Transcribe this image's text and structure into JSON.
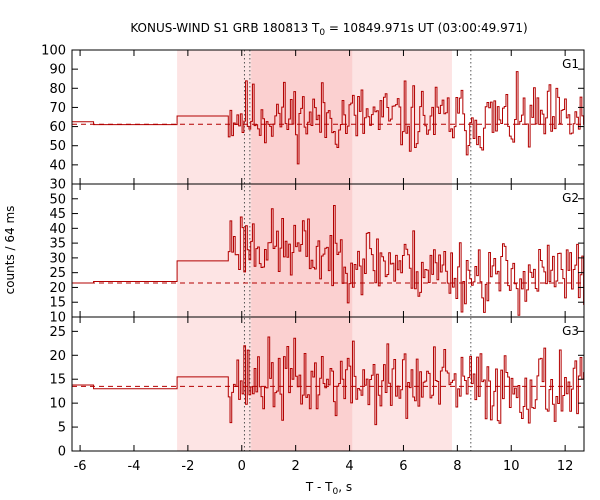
{
  "chart_data": {
    "type": "line",
    "title": {
      "prefix": "KONUS-WIND S1 GRB 180813 T",
      "sub": "0",
      "suffix": " = 10849.971s UT (03:00:49.971)"
    },
    "xlabel": {
      "prefix": "T - T",
      "sub": "0",
      "suffix": ", s"
    },
    "ylabel": "counts / 64 ms",
    "xlim": [
      -6.3,
      12.7
    ],
    "x_ticks": [
      -6,
      -4,
      -2,
      0,
      2,
      4,
      6,
      8,
      10,
      12
    ],
    "shaded_regions": [
      {
        "x0": -2.4,
        "x1": 7.8,
        "color": "#fde4e4"
      },
      {
        "x0": 0.35,
        "x1": 4.1,
        "color": "#fbd0d0"
      }
    ],
    "vlines": [
      0.1,
      0.3,
      8.5
    ],
    "line_color": "#b30000",
    "panels": [
      {
        "name": "G1",
        "ylim": [
          30,
          100
        ],
        "y_ticks": [
          30,
          40,
          50,
          60,
          70,
          80,
          90,
          100
        ],
        "background": 61.2,
        "coarse": [
          {
            "x0": -6.3,
            "x1": -5.5,
            "y": 62.5
          },
          {
            "x0": -5.5,
            "x1": -2.4,
            "y": 61
          },
          {
            "x0": -2.4,
            "x1": -0.5,
            "y": 65.5
          }
        ],
        "fine": {
          "start": -0.5,
          "dt": 0.064,
          "mean": 66,
          "amp": 9,
          "decay_to": 63,
          "seed": 11
        }
      },
      {
        "name": "G2",
        "ylim": [
          10,
          55
        ],
        "y_ticks": [
          10,
          15,
          20,
          25,
          30,
          35,
          40,
          45,
          50
        ],
        "background": 21.5,
        "coarse": [
          {
            "x0": -6.3,
            "x1": -5.5,
            "y": 21.5
          },
          {
            "x0": -5.5,
            "x1": -2.4,
            "y": 22
          },
          {
            "x0": -2.4,
            "x1": -0.5,
            "y": 29
          }
        ],
        "fine": {
          "start": -0.5,
          "dt": 0.064,
          "mean": 36,
          "amp": 6,
          "decay_to": 24,
          "seed": 23
        }
      },
      {
        "name": "G3",
        "ylim": [
          0,
          28
        ],
        "y_ticks": [
          0,
          5,
          10,
          15,
          20,
          25
        ],
        "background": 13.5,
        "coarse": [
          {
            "x0": -6.3,
            "x1": -5.5,
            "y": 13.8
          },
          {
            "x0": -5.5,
            "x1": -2.4,
            "y": 13
          },
          {
            "x0": -2.4,
            "x1": -0.5,
            "y": 15.5
          }
        ],
        "fine": {
          "start": -0.5,
          "dt": 0.064,
          "mean": 15,
          "amp": 4,
          "decay_to": 13.5,
          "seed": 37
        }
      }
    ]
  }
}
